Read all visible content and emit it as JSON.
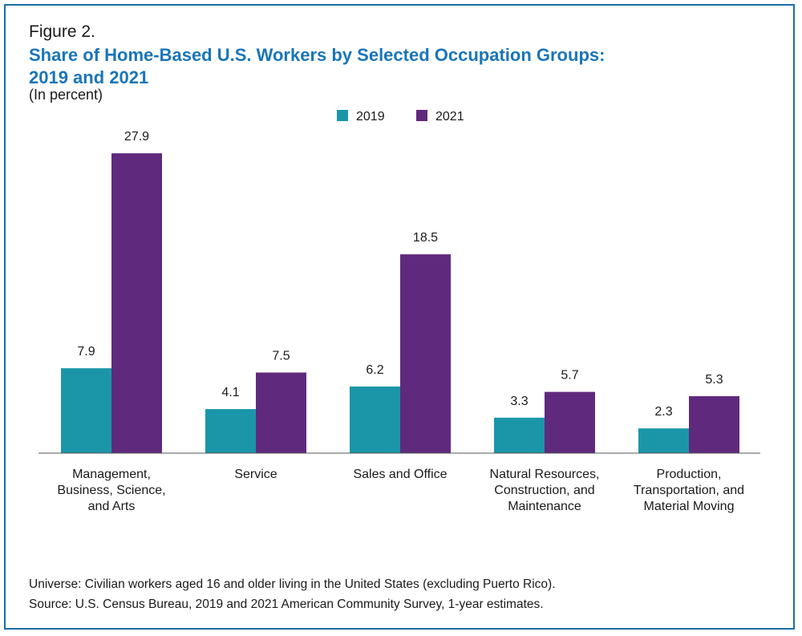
{
  "figure_label": "Figure 2.",
  "title_line1": "Share of Home-Based U.S. Workers by Selected Occupation Groups:",
  "title_line2": "2019 and 2021",
  "subtitle": "(In percent)",
  "footnotes": {
    "universe": "Universe: Civilian workers aged 16 and older living in the United States (excluding Puerto Rico).",
    "source": "Source: U.S. Census Bureau, 2019 and 2021 American Community Survey, 1-year estimates."
  },
  "colors": {
    "series_2019": "#1b96a8",
    "series_2021": "#5f2a7d",
    "title": "#1a75b8",
    "frame": "#1a6ea8",
    "axis": "#555555"
  },
  "chart_data": {
    "type": "bar",
    "categories": [
      [
        "Management,",
        "Business, Science,",
        "and Arts"
      ],
      [
        "Service"
      ],
      [
        "Sales and Office"
      ],
      [
        "Natural Resources,",
        "Construction, and",
        "Maintenance"
      ],
      [
        "Production,",
        "Transportation, and",
        "Material Moving"
      ]
    ],
    "series": [
      {
        "name": "2019",
        "values": [
          7.9,
          4.1,
          6.2,
          3.3,
          2.3
        ],
        "labels": [
          "7.9",
          "4.1",
          "6.2",
          "3.3",
          "2.3"
        ]
      },
      {
        "name": "2021",
        "values": [
          27.9,
          7.5,
          18.5,
          5.7,
          5.3
        ],
        "labels": [
          "27.9",
          "7.5",
          "18.5",
          "5.7",
          "5.3"
        ]
      }
    ],
    "ylim": [
      0,
      28
    ],
    "legend_position": "top-center",
    "grid": false
  }
}
